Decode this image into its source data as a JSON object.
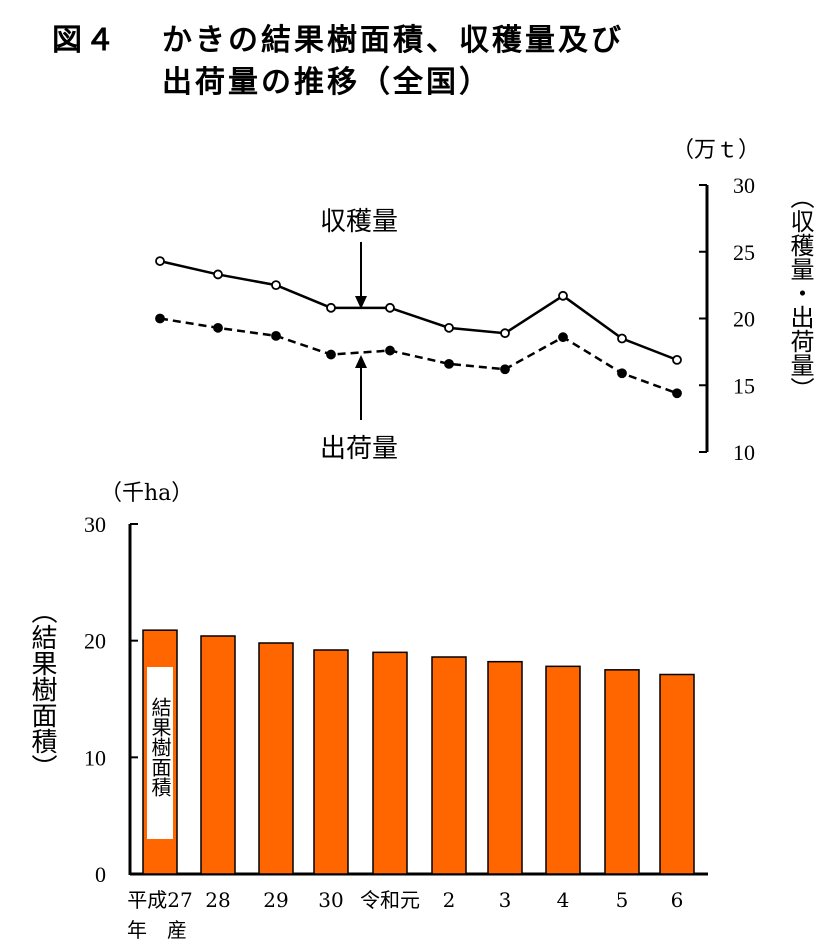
{
  "title": {
    "number": "図４",
    "line1": "かきの結果樹面積、収穫量及び",
    "line2": "出荷量の推移（全国）"
  },
  "colors": {
    "bar": "#FF6600",
    "line": "#000000",
    "background": "#FFFFFF"
  },
  "chart_data": [
    {
      "type": "line",
      "unit": "（万ｔ）",
      "ylabel": "（収穫量・出荷量）",
      "ylim": [
        10,
        30
      ],
      "yticks": [
        "30",
        "25",
        "20",
        "15",
        "10"
      ],
      "categories": [
        "平成27",
        "28",
        "29",
        "30",
        "令和元",
        "2",
        "3",
        "4",
        "5",
        "6"
      ],
      "series": [
        {
          "name": "収穫量",
          "style": "solid",
          "marker": "open-circle",
          "values": [
            24.3,
            23.3,
            22.5,
            20.8,
            20.8,
            19.3,
            18.9,
            21.7,
            18.5,
            16.9
          ]
        },
        {
          "name": "出荷量",
          "style": "dashed",
          "marker": "filled-circle",
          "values": [
            20.0,
            19.3,
            18.7,
            17.3,
            17.6,
            16.6,
            16.2,
            18.6,
            15.9,
            14.4
          ]
        }
      ],
      "grid": false,
      "legend": "annotations with arrows"
    },
    {
      "type": "bar",
      "unit": "（千ha）",
      "ylabel": "（結果樹面積）",
      "series_label": "結果樹面積",
      "ylim": [
        0,
        30
      ],
      "yticks": [
        "30",
        "20",
        "10",
        "0"
      ],
      "categories": [
        "平成27",
        "28",
        "29",
        "30",
        "令和元",
        "2",
        "3",
        "4",
        "5",
        "6"
      ],
      "values": [
        20.9,
        20.4,
        19.8,
        19.2,
        19.0,
        18.6,
        18.2,
        17.8,
        17.5,
        17.1
      ],
      "xaxis_caption": "年　産",
      "grid": false
    }
  ]
}
